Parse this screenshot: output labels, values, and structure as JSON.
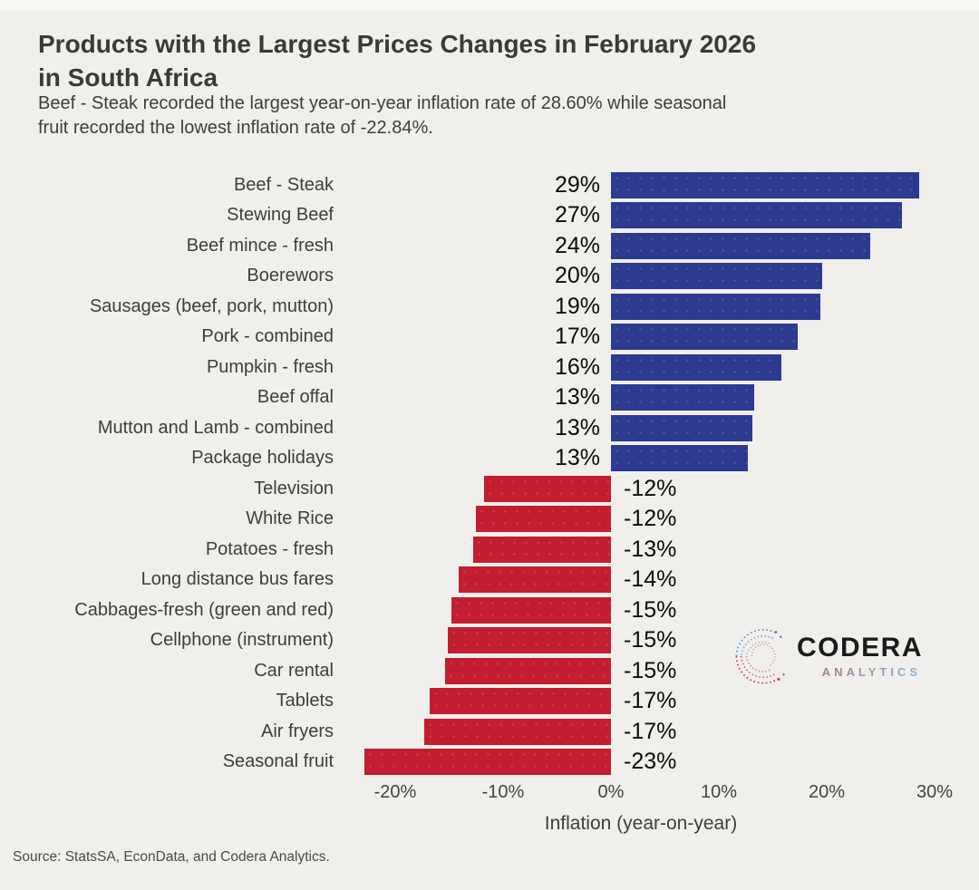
{
  "title": {
    "line1": "Products with the Largest Prices Changes in February 2026",
    "line2": "in South Africa"
  },
  "subtitle": {
    "line1": "Beef - Steak recorded the largest year-on-year inflation rate of 28.60% while seasonal",
    "line2": "fruit recorded the lowest inflation rate of -22.84%."
  },
  "source": "Source: StatsSA, EconData, and Codera Analytics.",
  "logo": {
    "name": "CODERA",
    "sub": "ANALYTICS"
  },
  "colors": {
    "page_background": "#f1efec",
    "top_strip": "#f9f8f6",
    "title": "#3a3a3a",
    "body_text": "#3e3e3e",
    "value_text": "#0c0c0c",
    "tick_text": "#444444",
    "source_text": "#4c4c4c",
    "logo_text": "#1b1b1b",
    "logo_red": "#bf4a52",
    "logo_blue": "#5b93c9",
    "logo_sub_start": "#b8636e",
    "logo_sub_end": "#8ab6d6"
  },
  "chart_data": {
    "type": "bar",
    "orientation": "horizontal",
    "title": "Products with the Largest Prices Changes in February 2026 in South Africa",
    "xlabel": "Inflation (year-on-year)",
    "ylabel": "",
    "grid": false,
    "legend": false,
    "xlim": [
      -25.2,
      30.8
    ],
    "x_ticks": [
      -20,
      -10,
      0,
      10,
      20,
      30
    ],
    "x_tick_labels": [
      "-20%",
      "-10%",
      "0%",
      "10%",
      "20%",
      "30%"
    ],
    "positive_color": "#2c3a90",
    "negative_color": "#c21e30",
    "categories": [
      "Beef - Steak",
      "Stewing Beef",
      "Beef mince - fresh",
      "Boerewors",
      "Sausages (beef, pork, mutton)",
      "Pork - combined",
      "Pumpkin - fresh",
      "Beef offal",
      "Mutton and Lamb - combined",
      "Package holidays",
      "Television",
      "White Rice",
      "Potatoes - fresh",
      "Long distance bus fares",
      "Cabbages-fresh (green and red)",
      "Cellphone (instrument)",
      "Car rental",
      "Tablets",
      "Air fryers",
      "Seasonal fruit"
    ],
    "values": [
      28.6,
      27.0,
      24.0,
      19.6,
      19.4,
      17.3,
      15.8,
      13.3,
      13.1,
      12.7,
      -11.8,
      -12.5,
      -12.8,
      -14.1,
      -14.8,
      -15.1,
      -15.4,
      -16.8,
      -17.3,
      -22.84
    ],
    "labels": [
      "29%",
      "27%",
      "24%",
      "20%",
      "19%",
      "17%",
      "16%",
      "13%",
      "13%",
      "13%",
      "-12%",
      "-12%",
      "-13%",
      "-14%",
      "-15%",
      "-15%",
      "-15%",
      "-17%",
      "-17%",
      "-23%"
    ]
  }
}
